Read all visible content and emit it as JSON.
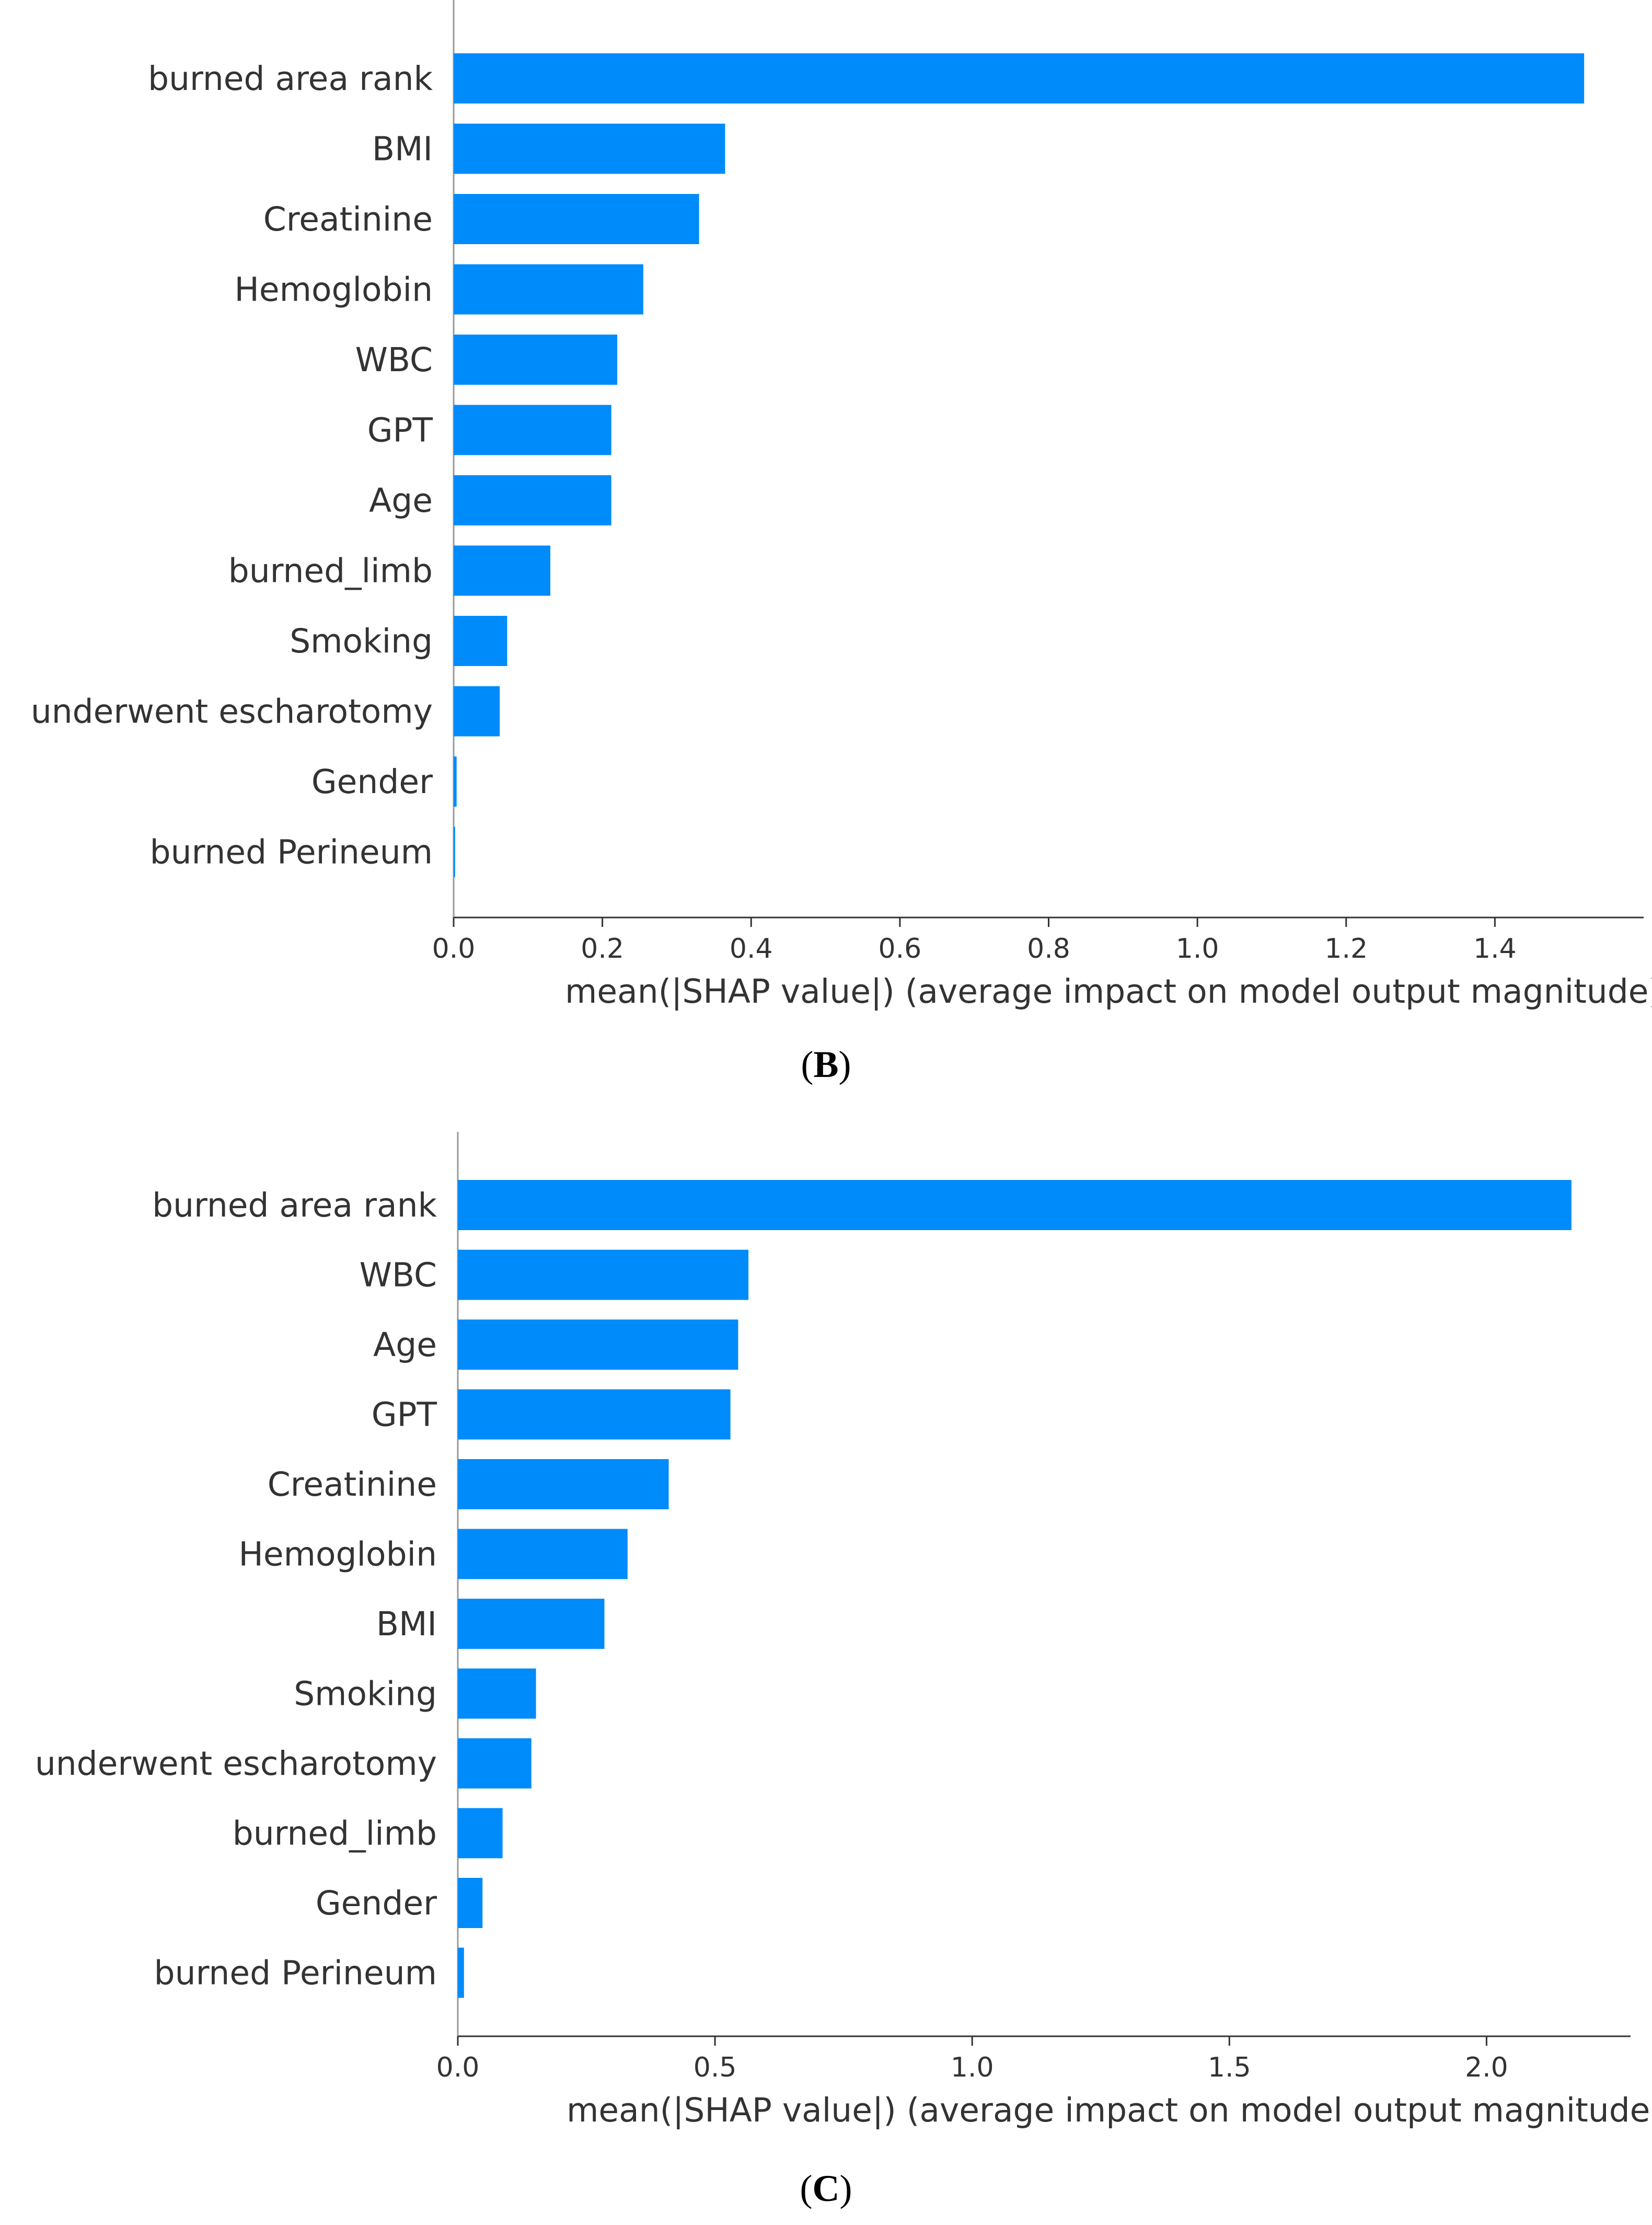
{
  "colors": {
    "bar": "#008bfb",
    "axis": "#333333",
    "text": "#333333"
  },
  "charts": [
    {
      "panel": "B",
      "chart_data": {
        "type": "bar",
        "orientation": "horizontal",
        "categories": [
          "burned area rank",
          "BMI",
          "Creatinine",
          "Hemoglobin",
          "WBC",
          "GPT",
          "Age",
          "burned_limb",
          "Smoking",
          "underwent escharotomy",
          "Gender",
          "burned Perineum"
        ],
        "values": [
          1.52,
          0.365,
          0.33,
          0.255,
          0.22,
          0.212,
          0.212,
          0.13,
          0.072,
          0.062,
          0.004,
          0.002
        ],
        "xlabel": "mean(|SHAP value|) (average impact on model output magnitude)",
        "ylabel": "",
        "xlim": [
          0,
          1.6
        ],
        "xticks": [
          "0.0",
          "0.2",
          "0.4",
          "0.6",
          "0.8",
          "1.0",
          "1.2",
          "1.4"
        ],
        "grid": false
      }
    },
    {
      "panel": "C",
      "chart_data": {
        "type": "bar",
        "orientation": "horizontal",
        "categories": [
          "burned area rank",
          "WBC",
          "Age",
          "GPT",
          "Creatinine",
          "Hemoglobin",
          "BMI",
          "Smoking",
          "underwent escharotomy",
          "burned_limb",
          "Gender",
          "burned Perineum"
        ],
        "values": [
          2.165,
          0.565,
          0.545,
          0.53,
          0.41,
          0.33,
          0.285,
          0.152,
          0.143,
          0.087,
          0.048,
          0.012
        ],
        "xlabel": "mean(|SHAP value|) (average impact on model output magnitude)",
        "ylabel": "",
        "xlim": [
          0,
          2.28
        ],
        "xticks": [
          "0.0",
          "0.5",
          "1.0",
          "1.5",
          "2.0"
        ],
        "grid": false
      }
    }
  ]
}
